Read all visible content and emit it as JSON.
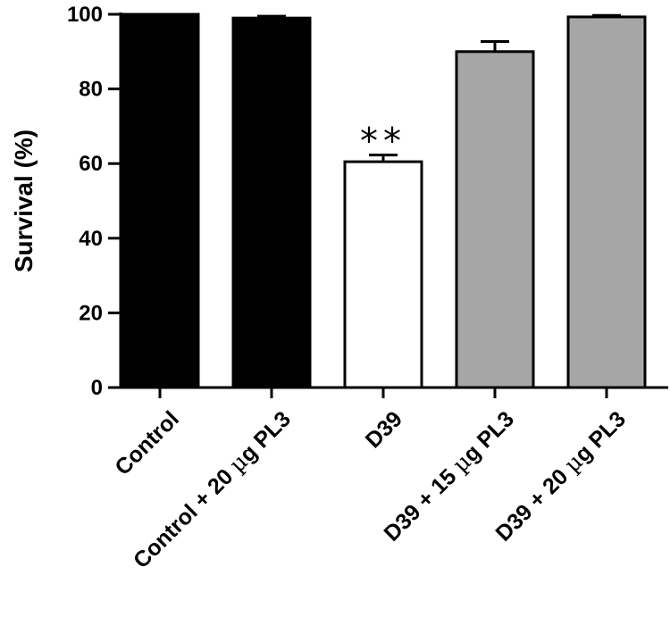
{
  "chart_data": {
    "type": "bar",
    "title": "",
    "xlabel": "",
    "ylabel": "Survival (%)",
    "ylim": [
      0,
      100
    ],
    "yticks": [
      0,
      20,
      40,
      60,
      80,
      100
    ],
    "grid": false,
    "categories": [
      {
        "pre": "Control",
        "mu": "",
        "post": ""
      },
      {
        "pre": "Control + 20 ",
        "mu": "µ",
        "post": "g PL3"
      },
      {
        "pre": "D39",
        "mu": "",
        "post": ""
      },
      {
        "pre": "D39 + 15 ",
        "mu": "µ",
        "post": "g PL3"
      },
      {
        "pre": "D39 + 20 ",
        "mu": "µ",
        "post": "g PL3"
      }
    ],
    "values": [
      100,
      99,
      60.5,
      90,
      99.3
    ],
    "errors": [
      0,
      0.5,
      1.8,
      2.7,
      0.4
    ],
    "colors": [
      "#000000",
      "#000000",
      "#ffffff",
      "#a6a6a6",
      "#a6a6a6"
    ],
    "annotations": [
      {
        "category_index": 2,
        "text": "**"
      }
    ]
  }
}
